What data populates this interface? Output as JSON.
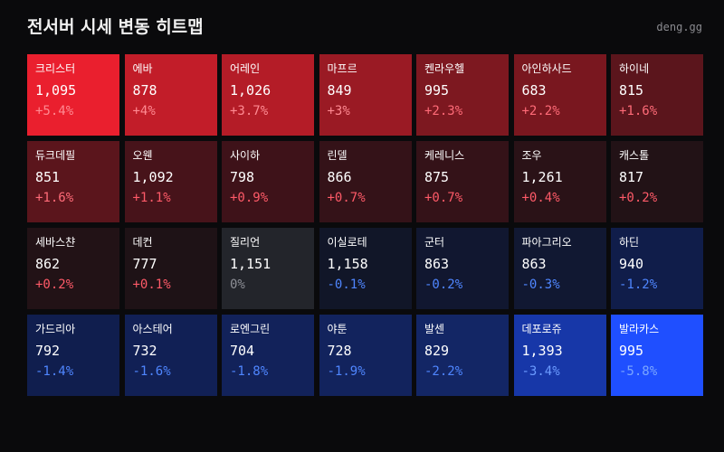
{
  "header": {
    "title": "전서버 시세 변동 히트맵",
    "brand": "deng.gg"
  },
  "cells": [
    {
      "name": "크리스터",
      "price": "1,095",
      "change": "+5.4%",
      "bg": "#ea1f2e",
      "change_color": "#ff8a92"
    },
    {
      "name": "에바",
      "price": "878",
      "change": "+4%",
      "bg": "#c21d29",
      "change_color": "#ff8a92"
    },
    {
      "name": "어레인",
      "price": "1,026",
      "change": "+3.7%",
      "bg": "#b41c27",
      "change_color": "#ff8a92"
    },
    {
      "name": "마프르",
      "price": "849",
      "change": "+3%",
      "bg": "#9a1a24",
      "change_color": "#ff8a92"
    },
    {
      "name": "켄라우헬",
      "price": "995",
      "change": "+2.3%",
      "bg": "#7d1820",
      "change_color": "#ff6b78"
    },
    {
      "name": "아인하사드",
      "price": "683",
      "change": "+2.2%",
      "bg": "#79171f",
      "change_color": "#ff6b78"
    },
    {
      "name": "하이네",
      "price": "815",
      "change": "+1.6%",
      "bg": "#5b151c",
      "change_color": "#ff6b78"
    },
    {
      "name": "듀크데필",
      "price": "851",
      "change": "+1.6%",
      "bg": "#5b151c",
      "change_color": "#ff6b78"
    },
    {
      "name": "오웬",
      "price": "1,092",
      "change": "+1.1%",
      "bg": "#47131a",
      "change_color": "#ff5a68"
    },
    {
      "name": "사이하",
      "price": "798",
      "change": "+0.9%",
      "bg": "#3e1219",
      "change_color": "#ff5a68"
    },
    {
      "name": "린델",
      "price": "866",
      "change": "+0.7%",
      "bg": "#341218",
      "change_color": "#ff5a68"
    },
    {
      "name": "케레니스",
      "price": "875",
      "change": "+0.7%",
      "bg": "#341218",
      "change_color": "#ff5a68"
    },
    {
      "name": "조우",
      "price": "1,261",
      "change": "+0.4%",
      "bg": "#2a1217",
      "change_color": "#ff5a68"
    },
    {
      "name": "캐스톨",
      "price": "817",
      "change": "+0.2%",
      "bg": "#221216",
      "change_color": "#ff5a68"
    },
    {
      "name": "세바스챤",
      "price": "862",
      "change": "+0.2%",
      "bg": "#221216",
      "change_color": "#ff5a68"
    },
    {
      "name": "데컨",
      "price": "777",
      "change": "+0.1%",
      "bg": "#1e1216",
      "change_color": "#ff5a68"
    },
    {
      "name": "질리언",
      "price": "1,151",
      "change": "0%",
      "bg": "#23252b",
      "change_color": "#8d8f96"
    },
    {
      "name": "이실로테",
      "price": "1,158",
      "change": "-0.1%",
      "bg": "#111628",
      "change_color": "#4f86ff"
    },
    {
      "name": "군터",
      "price": "863",
      "change": "-0.2%",
      "bg": "#111730",
      "change_color": "#4f86ff"
    },
    {
      "name": "파아그리오",
      "price": "863",
      "change": "-0.3%",
      "bg": "#111832",
      "change_color": "#4f86ff"
    },
    {
      "name": "하딘",
      "price": "940",
      "change": "-1.2%",
      "bg": "#101d4a",
      "change_color": "#4f86ff"
    },
    {
      "name": "가드리아",
      "price": "792",
      "change": "-1.4%",
      "bg": "#101e4e",
      "change_color": "#4f86ff"
    },
    {
      "name": "아스테어",
      "price": "732",
      "change": "-1.6%",
      "bg": "#112055",
      "change_color": "#4f86ff"
    },
    {
      "name": "로엔그린",
      "price": "704",
      "change": "-1.8%",
      "bg": "#12225a",
      "change_color": "#4f86ff"
    },
    {
      "name": "야툰",
      "price": "728",
      "change": "-1.9%",
      "bg": "#12235d",
      "change_color": "#4f86ff"
    },
    {
      "name": "발센",
      "price": "829",
      "change": "-2.2%",
      "bg": "#132665",
      "change_color": "#4f86ff"
    },
    {
      "name": "데포로쥬",
      "price": "1,393",
      "change": "-3.4%",
      "bg": "#1737a8",
      "change_color": "#6b9bff"
    },
    {
      "name": "발라카스",
      "price": "995",
      "change": "-5.8%",
      "bg": "#1f4fff",
      "change_color": "#7aa6ff"
    }
  ]
}
